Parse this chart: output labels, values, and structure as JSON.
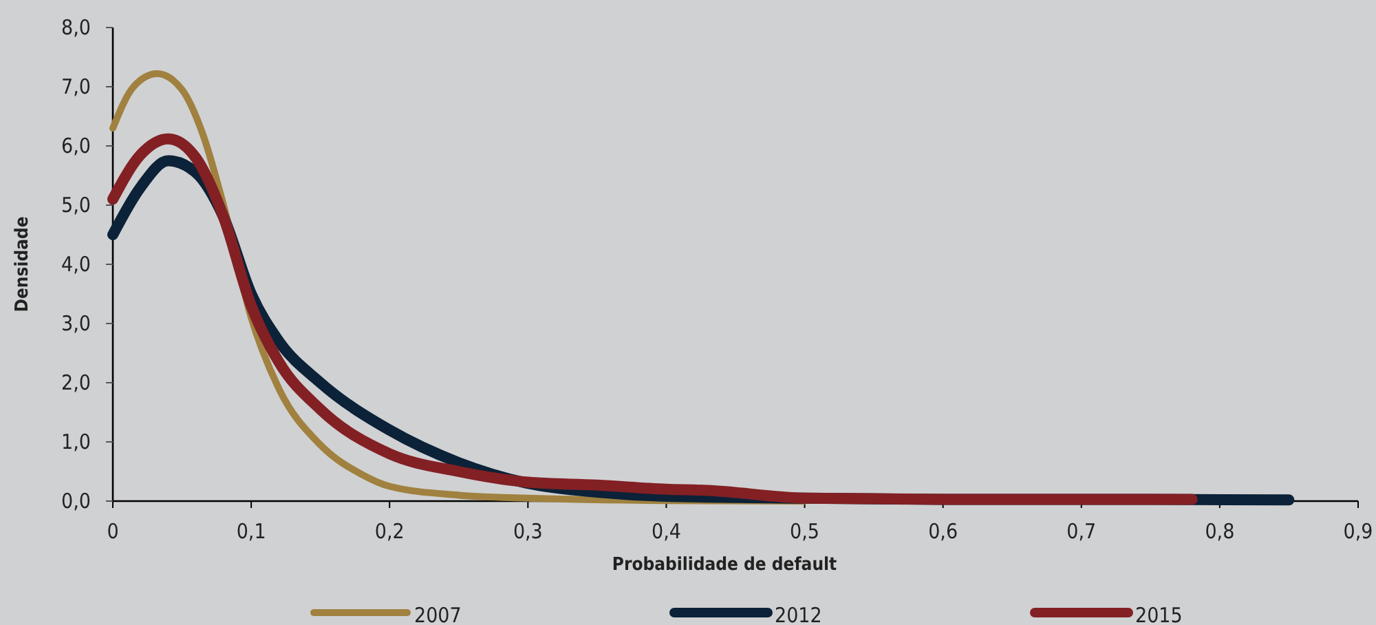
{
  "chart_data": {
    "type": "line",
    "xlabel": "Probabilidade de default",
    "ylabel": "Densidade",
    "xlim": [
      0,
      0.9
    ],
    "ylim": [
      0,
      8
    ],
    "xticks": [
      0,
      {
        "value": 0.1,
        "label": "0,1"
      },
      {
        "value": 0.2,
        "label": "0,2"
      },
      {
        "value": 0.3,
        "label": "0,3"
      },
      {
        "value": 0.4,
        "label": "0,4"
      },
      {
        "value": 0.5,
        "label": "0,5"
      },
      {
        "value": 0.6,
        "label": "0,6"
      },
      {
        "value": 0.7,
        "label": "0,7"
      },
      {
        "value": 0.8,
        "label": "0,8"
      },
      {
        "value": 0.9,
        "label": "0,9"
      }
    ],
    "yticks": [
      {
        "value": 0,
        "label": "0,0"
      },
      {
        "value": 1,
        "label": "1,0"
      },
      {
        "value": 2,
        "label": "2,0"
      },
      {
        "value": 3,
        "label": "3,0"
      },
      {
        "value": 4,
        "label": "4,0"
      },
      {
        "value": 5,
        "label": "5,0"
      },
      {
        "value": 6,
        "label": "6,0"
      },
      {
        "value": 7,
        "label": "7,0"
      },
      {
        "value": 8,
        "label": "8,0"
      }
    ],
    "grid": false,
    "legend": "bottom",
    "marker": "none",
    "line_style": "solid",
    "series": [
      {
        "name": "2007",
        "color": "#a0813f",
        "x": [
          0,
          0.015,
          0.032,
          0.05,
          0.065,
          0.08,
          0.1,
          0.12,
          0.15,
          0.18,
          0.2,
          0.25,
          0.3,
          0.4,
          0.5
        ],
        "values": [
          6.3,
          7.0,
          7.22,
          6.95,
          6.2,
          5.0,
          3.1,
          1.9,
          0.95,
          0.45,
          0.25,
          0.1,
          0.05,
          0.01,
          0
        ]
      },
      {
        "name": "2012",
        "color": "#0b2238",
        "x": [
          0,
          0.02,
          0.04,
          0.06,
          0.08,
          0.1,
          0.12,
          0.15,
          0.2,
          0.25,
          0.3,
          0.35,
          0.4,
          0.5,
          0.6,
          0.7,
          0.85
        ],
        "values": [
          4.5,
          5.3,
          5.75,
          5.55,
          4.8,
          3.5,
          2.7,
          2.0,
          1.2,
          0.65,
          0.3,
          0.15,
          0.08,
          0.05,
          0.03,
          0.03,
          0.02
        ]
      },
      {
        "name": "2015",
        "color": "#832024",
        "x": [
          0,
          0.02,
          0.04,
          0.06,
          0.08,
          0.1,
          0.12,
          0.15,
          0.2,
          0.25,
          0.3,
          0.35,
          0.4,
          0.43,
          0.5,
          0.6,
          0.78
        ],
        "values": [
          5.1,
          5.85,
          6.12,
          5.8,
          4.8,
          3.3,
          2.35,
          1.55,
          0.8,
          0.5,
          0.32,
          0.27,
          0.2,
          0.18,
          0.05,
          0.03,
          0.03
        ]
      }
    ]
  }
}
